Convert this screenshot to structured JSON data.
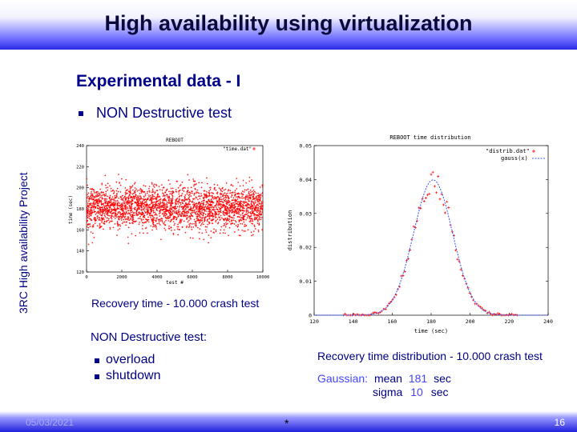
{
  "slide": {
    "title": "High availability using virtualization",
    "subtitle": "Experimental data - I",
    "bullet1": "NON Destructive test",
    "side_label": "3RC High availability Project",
    "caption_left": "Recovery time - 10.000 crash test",
    "nd_label": "NON Destructive test:",
    "items": [
      "overload",
      "shutdown"
    ],
    "caption_right": "Recovery time distribution - 10.000 crash test",
    "gauss": {
      "label": "Gaussian:",
      "mean_label": "mean",
      "mean": "181",
      "sigma_label": "sigma",
      "sigma": "10",
      "unit": "sec"
    },
    "footer": {
      "date": "05/03/2021",
      "mid": "*",
      "page": "16"
    },
    "colors": {
      "accent": "#000088",
      "highlight": "#4444ff",
      "points": "#ff0000",
      "curve": "#3355ff"
    }
  },
  "chart_data": [
    {
      "type": "scatter",
      "title": "REBOOT",
      "xlabel": "test #",
      "ylabel": "time (sec)",
      "legend": "\"time.dat\"",
      "xlim": [
        0,
        10000
      ],
      "ylim": [
        120,
        240
      ],
      "xticks": [
        "0",
        "2000",
        "4000",
        "6000",
        "8000",
        "10000"
      ],
      "yticks": [
        "240",
        "220",
        "200",
        "180",
        "160",
        "140",
        "120"
      ],
      "n_points": 10000,
      "center": 181,
      "spread": 10
    },
    {
      "type": "line",
      "title": "REBOOT time distribution",
      "xlabel": "time (sec)",
      "ylabel": "distribution",
      "legend": [
        "\"distrib.dat\"",
        "gauss(x)"
      ],
      "xlim": [
        120,
        240
      ],
      "ylim": [
        0,
        0.05
      ],
      "xticks": [
        "120",
        "140",
        "160",
        "180",
        "200",
        "220",
        "240"
      ],
      "yticks": [
        "0.05",
        "0.04",
        "0.03",
        "0.02",
        "0.01",
        "0"
      ],
      "mean": 181,
      "sigma": 10
    }
  ]
}
